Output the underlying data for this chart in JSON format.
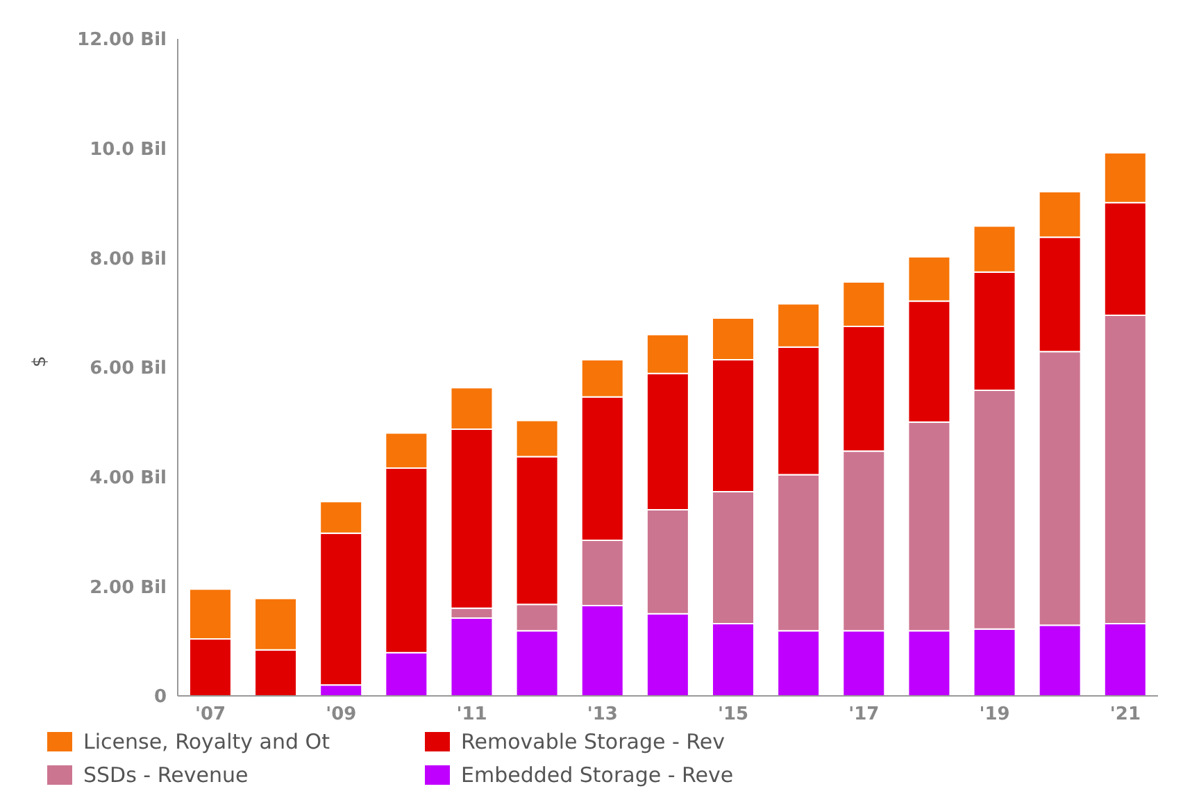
{
  "chart_data": {
    "type": "bar",
    "stacked": true,
    "ylabel": "$",
    "categories": [
      "'07",
      null,
      "'09",
      null,
      "'11",
      null,
      "'13",
      null,
      "'15",
      null,
      "'17",
      null,
      "'19",
      null,
      "'21"
    ],
    "series": [
      {
        "name": "Embedded Storage - Reve",
        "color": "#c000ff",
        "values": [
          null,
          null,
          0.2,
          0.79,
          1.42,
          1.19,
          1.65,
          1.5,
          1.32,
          1.19,
          1.19,
          1.19,
          1.22,
          1.29,
          1.32
        ]
      },
      {
        "name": "SSDs - Revenue",
        "color": "#cc7591",
        "values": [
          null,
          null,
          null,
          null,
          0.18,
          0.48,
          1.19,
          1.9,
          2.41,
          2.85,
          3.28,
          3.81,
          4.36,
          5.0,
          5.63
        ]
      },
      {
        "name": "Removable Storage - Rev",
        "color": "#e10000",
        "values": [
          1.04,
          0.84,
          2.77,
          3.37,
          3.27,
          2.7,
          2.62,
          2.49,
          2.41,
          2.33,
          2.28,
          2.21,
          2.16,
          2.09,
          2.06
        ]
      },
      {
        "name": "License, Royalty and Ot",
        "color": "#f77408",
        "values": [
          0.91,
          0.94,
          0.58,
          0.64,
          0.76,
          0.66,
          0.68,
          0.71,
          0.76,
          0.79,
          0.81,
          0.81,
          0.84,
          0.83,
          0.91
        ]
      }
    ],
    "ylim": [
      0,
      12
    ],
    "yticks": [
      {
        "value": 0,
        "label": "0"
      },
      {
        "value": 2,
        "label": "2.00 Bil"
      },
      {
        "value": 4,
        "label": "4.00 Bil"
      },
      {
        "value": 6,
        "label": "6.00 Bil"
      },
      {
        "value": 8,
        "label": "8.00 Bil"
      },
      {
        "value": 10,
        "label": "10.0 Bil"
      },
      {
        "value": 12,
        "label": "12.00 Bil"
      }
    ],
    "grid": false,
    "legend": "bottom"
  }
}
